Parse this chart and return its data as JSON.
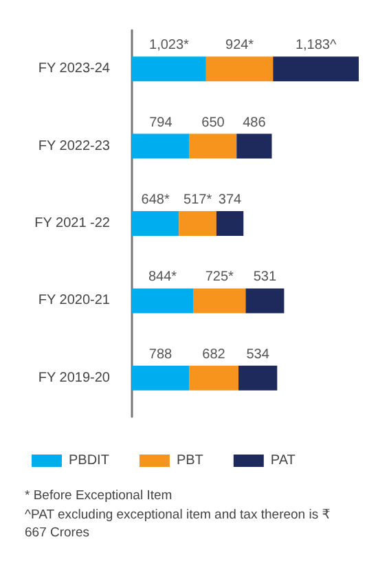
{
  "chart_data": {
    "type": "bar",
    "orientation": "horizontal",
    "stacked": true,
    "categories": [
      "FY 2023-24",
      "FY 2022-23",
      "FY 2021 -22",
      "FY 2020-21",
      "FY 2019-20"
    ],
    "series": [
      {
        "name": "PBDIT",
        "color": "#00aeef",
        "values": [
          1023,
          794,
          648,
          844,
          788
        ],
        "value_labels": [
          "1,023*",
          "794",
          "648*",
          "844*",
          "788"
        ]
      },
      {
        "name": "PBT",
        "color": "#f7941d",
        "values": [
          924,
          650,
          517,
          725,
          682
        ],
        "value_labels": [
          "924*",
          "650",
          "517*",
          "725*",
          "682"
        ]
      },
      {
        "name": "PAT",
        "color": "#1f2a5c",
        "values": [
          1183,
          486,
          374,
          531,
          534
        ],
        "value_labels": [
          "1,183^",
          "486",
          "374",
          "531",
          "534"
        ]
      }
    ],
    "annotations": [
      "* Before Exceptional Item",
      "^PAT excluding exceptional item and tax thereon is ₹667 Crores"
    ],
    "legend": "bottom",
    "grid": false,
    "tick_labels": "y"
  }
}
